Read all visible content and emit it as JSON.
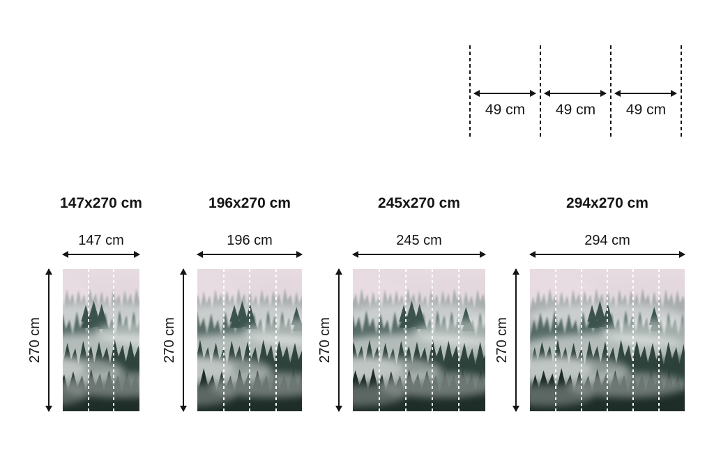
{
  "page": {
    "background": "#ffffff",
    "line_color": "#151515"
  },
  "panel_diagram": {
    "description": "single-panel width schematic with dashed cut lines",
    "segments": [
      {
        "label": "49 cm"
      },
      {
        "label": "49 cm"
      },
      {
        "label": "49 cm"
      }
    ]
  },
  "sizes": [
    {
      "title": "147x270 cm",
      "width_label": "147 cm",
      "height_label": "270 cm",
      "panels": 3
    },
    {
      "title": "196x270 cm",
      "width_label": "196 cm",
      "height_label": "270 cm",
      "panels": 4
    },
    {
      "title": "245x270 cm",
      "width_label": "245 cm",
      "height_label": "270 cm",
      "panels": 5
    },
    {
      "title": "294x270 cm",
      "width_label": "294 cm",
      "height_label": "270 cm",
      "panels": 6
    }
  ],
  "photo": {
    "subject": "foggy-mountain-forest-mural",
    "colors": {
      "sky_top": "#e7dce2",
      "sky_mid": "#d8cfd4",
      "sky_bottom": "#c7ccc8",
      "tree_far": "#6e847e",
      "tree_mid": "#49605a",
      "tree_near": "#2c3f39",
      "tree_foreground": "#1e2d28",
      "fog": "#ffffff",
      "seam": "#ffffff"
    }
  }
}
